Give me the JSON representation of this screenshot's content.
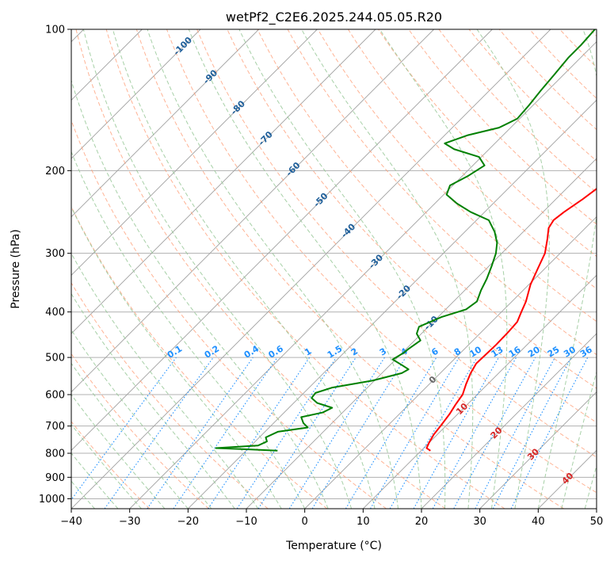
{
  "chart_data": {
    "type": "line",
    "title": "wetPf2_C2E6.2025.244.05.05.R20",
    "xlabel": "Temperature (°C)",
    "ylabel": "Pressure (hPa)",
    "xlim": [
      -40,
      50
    ],
    "ylim": [
      1050,
      100
    ],
    "y_scale": "log",
    "grid": true,
    "x_ticks": [
      -40,
      -30,
      -20,
      -10,
      0,
      10,
      20,
      30,
      40,
      50
    ],
    "x_tick_labels": [
      "−40",
      "−30",
      "−20",
      "−10",
      "0",
      "10",
      "20",
      "30",
      "40",
      "50"
    ],
    "y_ticks": [
      100,
      200,
      300,
      400,
      500,
      600,
      700,
      800,
      900,
      1000
    ],
    "y_tick_labels": [
      "100",
      "200",
      "300",
      "400",
      "500",
      "600",
      "700",
      "800",
      "900",
      "1000"
    ],
    "series": [
      {
        "kind": "temperature",
        "color": "#ff0000",
        "points": [
          [
            790,
            11.6
          ],
          [
            780,
            10.5
          ],
          [
            760,
            10.0
          ],
          [
            730,
            9.4
          ],
          [
            700,
            9.1
          ],
          [
            660,
            8.6
          ],
          [
            630,
            8.0
          ],
          [
            600,
            7.5
          ],
          [
            570,
            6.3
          ],
          [
            540,
            5.2
          ],
          [
            515,
            4.5
          ],
          [
            495,
            4.6
          ],
          [
            470,
            4.7
          ],
          [
            440,
            4.6
          ],
          [
            420,
            4.4
          ],
          [
            400,
            3.4
          ],
          [
            380,
            2.4
          ],
          [
            350,
            0.3
          ],
          [
            320,
            -1.4
          ],
          [
            300,
            -2.6
          ],
          [
            280,
            -4.6
          ],
          [
            265,
            -6.3
          ],
          [
            255,
            -6.8
          ],
          [
            245,
            -6.4
          ],
          [
            230,
            -5.4
          ],
          [
            215,
            -4.6
          ],
          [
            200,
            -4.1
          ],
          [
            188,
            -3.1
          ],
          [
            178,
            -1.6
          ],
          [
            165,
            -1.2
          ],
          [
            155,
            -1.3
          ],
          [
            145,
            -1.0
          ],
          [
            135,
            -0.8
          ],
          [
            125,
            -0.4
          ],
          [
            118,
            -1.0
          ],
          [
            110,
            -1.5
          ],
          [
            100,
            -1.7
          ]
        ]
      },
      {
        "kind": "dewpoint",
        "color": "#008000",
        "points": [
          [
            790,
            -14.6
          ],
          [
            785,
            -19.8
          ],
          [
            780,
            -25.6
          ],
          [
            770,
            -18.8
          ],
          [
            755,
            -18.0
          ],
          [
            740,
            -18.9
          ],
          [
            720,
            -17.8
          ],
          [
            705,
            -13.4
          ],
          [
            690,
            -14.9
          ],
          [
            670,
            -16.3
          ],
          [
            655,
            -13.4
          ],
          [
            640,
            -12.6
          ],
          [
            625,
            -16.0
          ],
          [
            610,
            -17.8
          ],
          [
            595,
            -18.0
          ],
          [
            580,
            -16.1
          ],
          [
            560,
            -10.3
          ],
          [
            540,
            -6.6
          ],
          [
            530,
            -6.1
          ],
          [
            520,
            -7.8
          ],
          [
            505,
            -10.5
          ],
          [
            490,
            -9.8
          ],
          [
            480,
            -9.6
          ],
          [
            460,
            -9.0
          ],
          [
            445,
            -10.8
          ],
          [
            430,
            -11.6
          ],
          [
            410,
            -9.4
          ],
          [
            395,
            -6.5
          ],
          [
            380,
            -6.0
          ],
          [
            360,
            -7.2
          ],
          [
            340,
            -8.2
          ],
          [
            320,
            -9.5
          ],
          [
            300,
            -11.0
          ],
          [
            285,
            -12.6
          ],
          [
            270,
            -14.9
          ],
          [
            255,
            -17.9
          ],
          [
            245,
            -22.4
          ],
          [
            235,
            -26.2
          ],
          [
            225,
            -29.5
          ],
          [
            215,
            -30.5
          ],
          [
            205,
            -29.0
          ],
          [
            195,
            -28.0
          ],
          [
            187,
            -30.4
          ],
          [
            180,
            -36.0
          ],
          [
            175,
            -38.6
          ],
          [
            168,
            -36.0
          ],
          [
            162,
            -32.0
          ],
          [
            155,
            -30.4
          ],
          [
            145,
            -30.7
          ],
          [
            135,
            -31.2
          ],
          [
            125,
            -31.6
          ],
          [
            115,
            -32.1
          ],
          [
            108,
            -32.1
          ],
          [
            100,
            -32.4
          ]
        ]
      }
    ],
    "dry_adiabat_labels": [
      "-100",
      "-90",
      "-80",
      "-70",
      "-60",
      "-50",
      "-40",
      "-30",
      "-20",
      "-10"
    ],
    "mixing_ratio_labels": [
      "0.1",
      "0.2",
      "0.4",
      "0.6",
      "1",
      "1.5",
      "2",
      "3",
      "4",
      "6",
      "8",
      "10",
      "13",
      "16",
      "20",
      "25",
      "30",
      "36"
    ],
    "moist_adiabat_labels": [
      "0",
      "10",
      "20",
      "30",
      "40"
    ],
    "colors": {
      "grid": "#b0b0b0",
      "isotherm": "#a0a0a0",
      "dry_adiabat": "#ffa07a",
      "moist_adiabat": "#98c898",
      "mixing_ratio": "#1e90ff",
      "dry_adiabat_label": "#1f5f9a",
      "mixing_ratio_label": "#1e90ff",
      "moist_adiabat_label": "#d62728"
    }
  }
}
